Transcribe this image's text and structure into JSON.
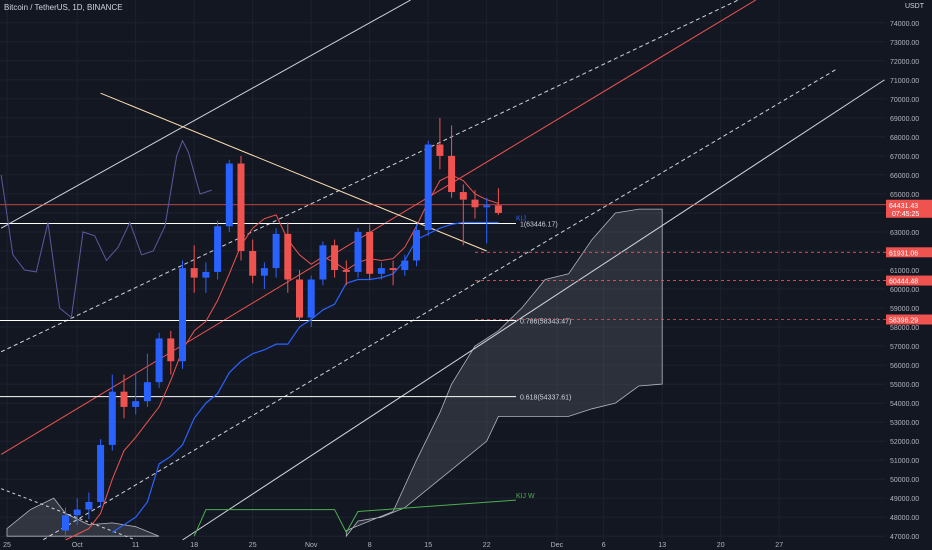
{
  "header": {
    "title": "Bitcoin / TetherUS, 1D, BINANCE",
    "currency": "USDT"
  },
  "colors": {
    "background": "#131722",
    "grid": "#1e222d",
    "text": "#b2b5be",
    "up": "#2962ff",
    "down": "#ef5350",
    "kijun": "#2962ff",
    "tenkan": "#ef5350",
    "laggingspan": "#5a5a9e",
    "cloud_fill": "#787b86",
    "fib": "#ffffff"
  },
  "chart_data": {
    "type": "candlestick",
    "ylim": [
      46800,
      75200
    ],
    "x_ticks": [
      {
        "label": "25",
        "day": 0
      },
      {
        "label": "Oct",
        "day": 6
      },
      {
        "label": "11",
        "day": 11
      },
      {
        "label": "18",
        "day": 16
      },
      {
        "label": "25",
        "day": 21
      },
      {
        "label": "Nov",
        "day": 26
      },
      {
        "label": "8",
        "day": 31
      },
      {
        "label": "15",
        "day": 36
      },
      {
        "label": "22",
        "day": 41
      },
      {
        "label": "Dec",
        "day": 47
      },
      {
        "label": "6",
        "day": 51
      },
      {
        "label": "13",
        "day": 56
      },
      {
        "label": "20",
        "day": 61
      },
      {
        "label": "27",
        "day": 66
      }
    ],
    "y_ticks": [
      47000,
      48000,
      49000,
      50000,
      51000,
      52000,
      53000,
      54000,
      55000,
      56000,
      57000,
      58000,
      59000,
      60000,
      61000,
      62000,
      63000,
      64000,
      65000,
      66000,
      67000,
      68000,
      69000,
      70000,
      71000,
      72000,
      73000,
      74000
    ],
    "candles": [
      {
        "day": 5,
        "o": 47300,
        "h": 48500,
        "l": 46900,
        "c": 48100
      },
      {
        "day": 6,
        "o": 48100,
        "h": 49000,
        "l": 47600,
        "c": 48400
      },
      {
        "day": 7,
        "o": 48400,
        "h": 49300,
        "l": 47900,
        "c": 48800
      },
      {
        "day": 8,
        "o": 48800,
        "h": 52100,
        "l": 48500,
        "c": 51800
      },
      {
        "day": 9,
        "o": 51800,
        "h": 55500,
        "l": 51500,
        "c": 54600
      },
      {
        "day": 10,
        "o": 54600,
        "h": 55500,
        "l": 53200,
        "c": 53800
      },
      {
        "day": 11,
        "o": 53800,
        "h": 55600,
        "l": 53400,
        "c": 54100
      },
      {
        "day": 12,
        "o": 54100,
        "h": 56600,
        "l": 53800,
        "c": 55100
      },
      {
        "day": 13,
        "o": 55100,
        "h": 57700,
        "l": 54800,
        "c": 57400
      },
      {
        "day": 14,
        "o": 57400,
        "h": 57800,
        "l": 55500,
        "c": 56200
      },
      {
        "day": 15,
        "o": 56200,
        "h": 61500,
        "l": 55800,
        "c": 61100
      },
      {
        "day": 16,
        "o": 61100,
        "h": 62300,
        "l": 59800,
        "c": 60600
      },
      {
        "day": 17,
        "o": 60600,
        "h": 61400,
        "l": 59800,
        "c": 60900
      },
      {
        "day": 18,
        "o": 60900,
        "h": 63600,
        "l": 60500,
        "c": 63300
      },
      {
        "day": 19,
        "o": 63300,
        "h": 66800,
        "l": 63000,
        "c": 66600
      },
      {
        "day": 20,
        "o": 66600,
        "h": 67000,
        "l": 61500,
        "c": 62000
      },
      {
        "day": 21,
        "o": 62000,
        "h": 62600,
        "l": 60300,
        "c": 60700
      },
      {
        "day": 22,
        "o": 60700,
        "h": 61400,
        "l": 60000,
        "c": 61100
      },
      {
        "day": 23,
        "o": 61100,
        "h": 63200,
        "l": 60600,
        "c": 62900
      },
      {
        "day": 24,
        "o": 62900,
        "h": 63500,
        "l": 59800,
        "c": 60500
      },
      {
        "day": 25,
        "o": 60500,
        "h": 61000,
        "l": 58300,
        "c": 58500
      },
      {
        "day": 26,
        "o": 58500,
        "h": 60700,
        "l": 58000,
        "c": 60500
      },
      {
        "day": 27,
        "o": 60500,
        "h": 62500,
        "l": 60200,
        "c": 62300
      },
      {
        "day": 28,
        "o": 62300,
        "h": 62600,
        "l": 60600,
        "c": 61000
      },
      {
        "day": 29,
        "o": 61000,
        "h": 61500,
        "l": 60200,
        "c": 60900
      },
      {
        "day": 30,
        "o": 60900,
        "h": 63200,
        "l": 60600,
        "c": 63000
      },
      {
        "day": 31,
        "o": 63000,
        "h": 63400,
        "l": 60500,
        "c": 60800
      },
      {
        "day": 32,
        "o": 60800,
        "h": 61400,
        "l": 60500,
        "c": 61100
      },
      {
        "day": 33,
        "o": 61100,
        "h": 61500,
        "l": 60200,
        "c": 61000
      },
      {
        "day": 34,
        "o": 61000,
        "h": 61800,
        "l": 60700,
        "c": 61500
      },
      {
        "day": 35,
        "o": 61500,
        "h": 63400,
        "l": 61200,
        "c": 63100
      },
      {
        "day": 36,
        "o": 63100,
        "h": 67800,
        "l": 62800,
        "c": 67600
      },
      {
        "day": 37,
        "o": 67600,
        "h": 69000,
        "l": 66300,
        "c": 67000
      },
      {
        "day": 38,
        "o": 67000,
        "h": 68600,
        "l": 64800,
        "c": 65100
      },
      {
        "day": 39,
        "o": 65100,
        "h": 65500,
        "l": 62300,
        "c": 64700
      },
      {
        "day": 40,
        "o": 64700,
        "h": 65200,
        "l": 63700,
        "c": 64300
      },
      {
        "day": 41,
        "o": 64300,
        "h": 64800,
        "l": 62400,
        "c": 64400
      },
      {
        "day": 42,
        "o": 64400,
        "h": 65300,
        "l": 63900,
        "c": 64000
      }
    ],
    "price_labels": [
      {
        "value": 64431.43,
        "label": "64431.43",
        "sub": "07:45:25",
        "color": "#ef5350"
      },
      {
        "value": 61931.06,
        "label": "61931.06",
        "color": "#ef5350"
      },
      {
        "value": 60444.48,
        "label": "60444.48",
        "color": "#ef5350"
      },
      {
        "value": 58396.29,
        "label": "58396.29",
        "color": "#ef5350"
      }
    ],
    "fib_levels": [
      {
        "value": 63446.17,
        "label": "1(63446.17)"
      },
      {
        "value": 58343.47,
        "label": "0.786(58343.47)"
      },
      {
        "value": 54337.61,
        "label": "0.618(54337.61)"
      }
    ],
    "annotations": [
      {
        "text": "KIJ",
        "day": 43.5,
        "value": 63600,
        "color": "#2962ff"
      },
      {
        "text": "KIJ W",
        "day": 43.5,
        "value": 49000,
        "color": "#4caf50"
      }
    ]
  }
}
